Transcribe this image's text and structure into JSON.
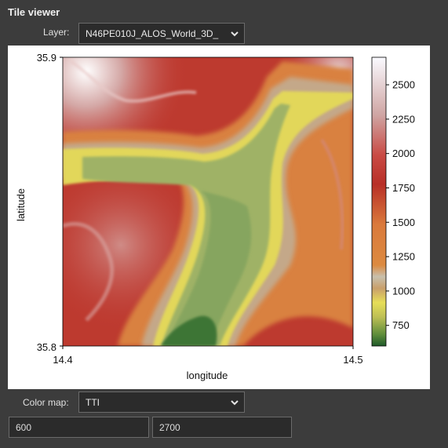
{
  "panel": {
    "title": "Tile viewer",
    "layer_label": "Layer:",
    "layer_value": "N46PE010J_ALOS_World_3D_",
    "colormap_label": "Color map:",
    "colormap_value": "TTI",
    "vmin": "600",
    "vmax": "2700"
  },
  "chart_data": {
    "type": "heatmap",
    "title": "",
    "xlabel": "longitude",
    "ylabel": "latitude",
    "xlim": [
      14.4,
      14.5
    ],
    "ylim": [
      35.8,
      35.9
    ],
    "x_ticks": [
      "14.4",
      "14.5"
    ],
    "y_ticks": [
      "35.9",
      "35.8"
    ],
    "colorbar": {
      "min": 600,
      "max": 2700,
      "ticks": [
        "2500",
        "2250",
        "2000",
        "1750",
        "1500",
        "1250",
        "1000",
        "750"
      ],
      "tick_values": [
        2500,
        2250,
        2000,
        1750,
        1500,
        1250,
        1000,
        750
      ],
      "colormap": "TTI"
    },
    "colors": {
      "valley_low": "#2f6b2c",
      "valley_mid": "#8eac62",
      "valley_edge": "#e1dc58",
      "slope": "#d98443",
      "ridge": "#b52f28",
      "peak": "#ffffff"
    }
  }
}
